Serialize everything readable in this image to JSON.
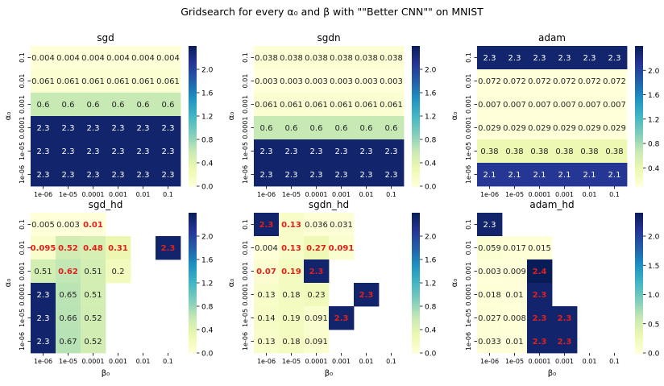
{
  "figure": {
    "suptitle": "Gridsearch for every α₀ and β with \"\"Better CNN\"\" on MNIST"
  },
  "colormap": {
    "name": "YlGnBu",
    "stops": [
      "#ffffd9",
      "#edf8b1",
      "#c7e9b4",
      "#7fcdbb",
      "#41b6c4",
      "#1d91c0",
      "#225ea8",
      "#253494",
      "#081d58"
    ]
  },
  "highlight_color": "#e0201b",
  "chart_data": [
    {
      "type": "heatmap",
      "title": "sgd",
      "xlabel": "",
      "ylabel": "α₀",
      "x_tick_labels": [
        "1e-06",
        "1e-05",
        "0.0001",
        "0.001",
        "0.01",
        "0.1"
      ],
      "y_tick_labels": [
        "0.1",
        "0.01",
        "0.001",
        "0.0001",
        "1e-05",
        "1e-06"
      ],
      "values": [
        [
          0.004,
          0.004,
          0.004,
          0.004,
          0.004,
          0.004
        ],
        [
          0.061,
          0.061,
          0.061,
          0.061,
          0.061,
          0.061
        ],
        [
          0.6,
          0.6,
          0.6,
          0.6,
          0.6,
          0.6
        ],
        [
          2.3,
          2.3,
          2.3,
          2.3,
          2.3,
          2.3
        ],
        [
          2.3,
          2.3,
          2.3,
          2.3,
          2.3,
          2.3
        ],
        [
          2.3,
          2.3,
          2.3,
          2.3,
          2.3,
          2.3
        ]
      ],
      "highlight": [],
      "vmin": 0,
      "vmax": 2.4,
      "colorbar_ticks": [
        "0.0",
        "0.4",
        "0.8",
        "1.2",
        "1.6",
        "2.0"
      ]
    },
    {
      "type": "heatmap",
      "title": "sgdn",
      "xlabel": "",
      "ylabel": "α₀",
      "x_tick_labels": [
        "1e-06",
        "1e-05",
        "0.0001",
        "0.001",
        "0.01",
        "0.1"
      ],
      "y_tick_labels": [
        "0.1",
        "0.01",
        "0.001",
        "0.0001",
        "1e-05",
        "1e-06"
      ],
      "values": [
        [
          0.038,
          0.038,
          0.038,
          0.038,
          0.038,
          0.038
        ],
        [
          0.003,
          0.003,
          0.003,
          0.003,
          0.003,
          0.003
        ],
        [
          0.061,
          0.061,
          0.061,
          0.061,
          0.061,
          0.061
        ],
        [
          0.6,
          0.6,
          0.6,
          0.6,
          0.6,
          0.6
        ],
        [
          2.3,
          2.3,
          2.3,
          2.3,
          2.3,
          2.3
        ],
        [
          2.3,
          2.3,
          2.3,
          2.3,
          2.3,
          2.3
        ]
      ],
      "highlight": [],
      "vmin": 0,
      "vmax": 2.4,
      "colorbar_ticks": [
        "0.0",
        "0.4",
        "0.8",
        "1.2",
        "1.6",
        "2.0"
      ]
    },
    {
      "type": "heatmap",
      "title": "adam",
      "xlabel": "",
      "ylabel": "α₀",
      "x_tick_labels": [
        "1e-06",
        "1e-05",
        "0.0001",
        "0.001",
        "0.01",
        "0.1"
      ],
      "y_tick_labels": [
        "0.1",
        "0.01",
        "0.001",
        "0.0001",
        "1e-05",
        "1e-06"
      ],
      "values": [
        [
          2.3,
          2.3,
          2.3,
          2.3,
          2.3,
          2.3
        ],
        [
          0.072,
          0.072,
          0.072,
          0.072,
          0.072,
          0.072
        ],
        [
          0.007,
          0.007,
          0.007,
          0.007,
          0.007,
          0.007
        ],
        [
          0.029,
          0.029,
          0.029,
          0.029,
          0.029,
          0.029
        ],
        [
          0.38,
          0.38,
          0.38,
          0.38,
          0.38,
          0.38
        ],
        [
          2.1,
          2.1,
          2.1,
          2.1,
          2.1,
          2.1
        ]
      ],
      "highlight": [],
      "vmin": 0.1,
      "vmax": 2.4,
      "colorbar_ticks": [
        "0.4",
        "0.8",
        "1.2",
        "1.6",
        "2.0"
      ]
    },
    {
      "type": "heatmap",
      "title": "sgd_hd",
      "xlabel": "β₀",
      "ylabel": "α₀",
      "x_tick_labels": [
        "1e-06",
        "1e-05",
        "0.0001",
        "0.001",
        "0.01",
        "0.1"
      ],
      "y_tick_labels": [
        "0.1",
        "0.01",
        "0.001",
        "0.0001",
        "1e-05",
        "1e-06"
      ],
      "values": [
        [
          0.005,
          0.003,
          0.01,
          null,
          null,
          null
        ],
        [
          0.095,
          0.52,
          0.48,
          0.31,
          null,
          2.3
        ],
        [
          0.51,
          0.62,
          0.51,
          0.2,
          null,
          null
        ],
        [
          2.3,
          0.65,
          0.51,
          null,
          null,
          null
        ],
        [
          2.3,
          0.66,
          0.52,
          null,
          null,
          null
        ],
        [
          2.3,
          0.67,
          0.52,
          null,
          null,
          null
        ]
      ],
      "highlight": [
        [
          0,
          2
        ],
        [
          1,
          0
        ],
        [
          1,
          1
        ],
        [
          1,
          2
        ],
        [
          1,
          3
        ],
        [
          1,
          5
        ],
        [
          2,
          1
        ],
        [
          2,
          5
        ]
      ],
      "vmin": 0,
      "vmax": 2.4,
      "colorbar_ticks": [
        "0.0",
        "0.4",
        "0.8",
        "1.2",
        "1.6",
        "2.0"
      ]
    },
    {
      "type": "heatmap",
      "title": "sgdn_hd",
      "xlabel": "β₀",
      "ylabel": "α₀",
      "x_tick_labels": [
        "1e-06",
        "1e-05",
        "0.0001",
        "0.001",
        "0.01",
        "0.1"
      ],
      "y_tick_labels": [
        "0.1",
        "0.01",
        "0.001",
        "0.0001",
        "1e-05",
        "1e-06"
      ],
      "values": [
        [
          2.3,
          0.13,
          0.036,
          0.031,
          null,
          null
        ],
        [
          0.004,
          0.13,
          0.27,
          0.091,
          null,
          null
        ],
        [
          0.07,
          0.19,
          2.3,
          null,
          null,
          null
        ],
        [
          0.13,
          0.18,
          0.23,
          null,
          2.3,
          null
        ],
        [
          0.14,
          0.19,
          0.091,
          2.3,
          null,
          null
        ],
        [
          0.13,
          0.18,
          0.091,
          null,
          null,
          null
        ]
      ],
      "highlight": [
        [
          0,
          0
        ],
        [
          0,
          1
        ],
        [
          1,
          1
        ],
        [
          1,
          2
        ],
        [
          1,
          3
        ],
        [
          2,
          0
        ],
        [
          2,
          1
        ],
        [
          2,
          2
        ],
        [
          3,
          4
        ],
        [
          4,
          3
        ]
      ],
      "vmin": 0,
      "vmax": 2.4,
      "colorbar_ticks": [
        "0.0",
        "0.4",
        "0.8",
        "1.2",
        "1.6",
        "2.0"
      ]
    },
    {
      "type": "heatmap",
      "title": "adam_hd",
      "xlabel": "β₀",
      "ylabel": "α₀",
      "x_tick_labels": [
        "1e-06",
        "1e-05",
        "0.0001",
        "0.001",
        "0.01",
        "0.1"
      ],
      "y_tick_labels": [
        "0.1",
        "0.01",
        "0.001",
        "0.0001",
        "1e-05",
        "1e-06"
      ],
      "values": [
        [
          2.3,
          null,
          null,
          null,
          null,
          null
        ],
        [
          0.059,
          0.017,
          0.015,
          null,
          null,
          null
        ],
        [
          0.003,
          0.009,
          2.4,
          null,
          null,
          null
        ],
        [
          0.018,
          0.01,
          2.3,
          null,
          null,
          null
        ],
        [
          0.027,
          0.008,
          2.3,
          2.3,
          null,
          null
        ],
        [
          0.033,
          0.01,
          2.3,
          2.3,
          null,
          null
        ]
      ],
      "highlight": [
        [
          2,
          2
        ],
        [
          3,
          2
        ],
        [
          4,
          2
        ],
        [
          4,
          3
        ],
        [
          5,
          2
        ],
        [
          5,
          3
        ]
      ],
      "vmin": 0,
      "vmax": 2.4,
      "colorbar_ticks": [
        "0.0",
        "0.5",
        "1.0",
        "1.5",
        "2.0"
      ]
    }
  ]
}
